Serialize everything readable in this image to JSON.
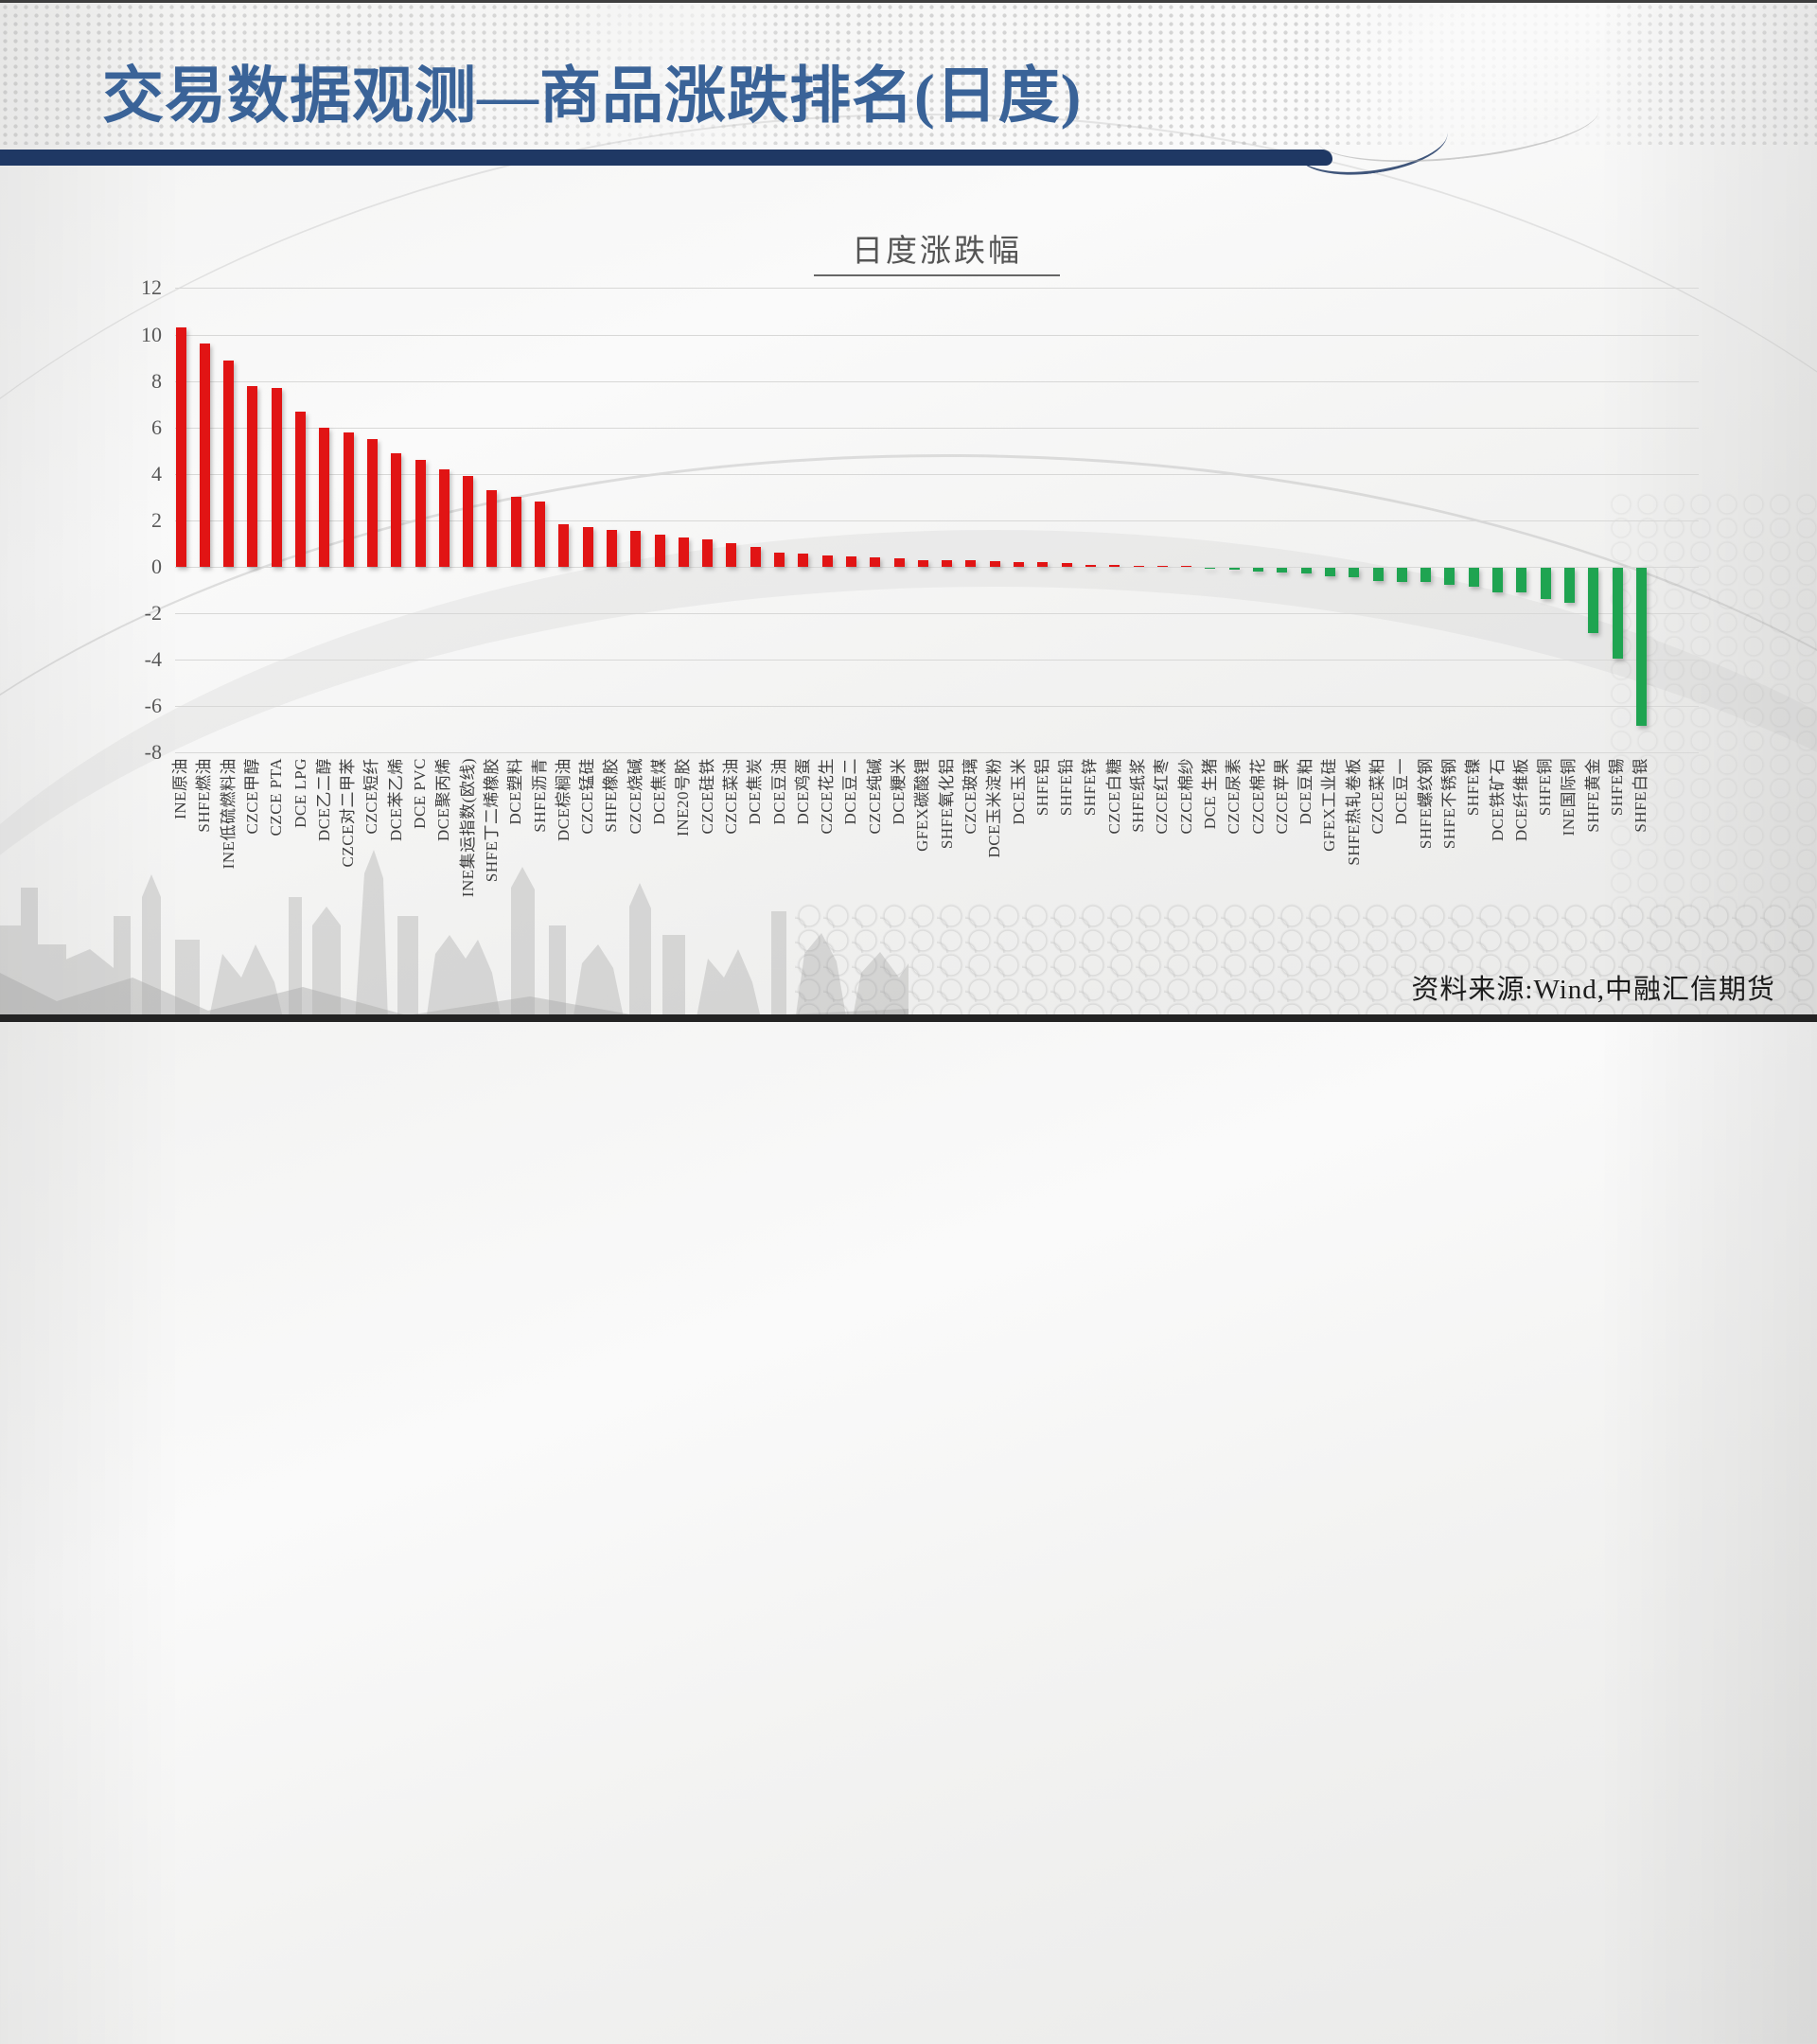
{
  "page": {
    "title": "交易数据观测—商品涨跌排名(日度)",
    "source": "资料来源:Wind,中融汇信期货"
  },
  "chart_data": {
    "type": "bar",
    "title": "日度涨跌幅",
    "xlabel": "",
    "ylabel": "",
    "ylim": [
      -8,
      12
    ],
    "yticks": [
      12,
      10,
      8,
      6,
      4,
      2,
      0,
      -2,
      -4,
      -6,
      -8
    ],
    "grid": true,
    "legend_position": "none",
    "positive_color": "#e11414",
    "negative_color": "#1fa451",
    "gridline_color": "#d8d8d7",
    "tick_color": "#595959",
    "categories": [
      "INE原油",
      "SHFE燃油",
      "INE低硫燃料油",
      "CZCE甲醇",
      "CZCE PTA",
      "DCE LPG",
      "DCE乙二醇",
      "CZCE对二甲苯",
      "CZCE短纤",
      "DCE苯乙烯",
      "DCE PVC",
      "DCE聚丙烯",
      "INE集运指数(欧线)",
      "SHFE丁二烯橡胶",
      "DCE塑料",
      "SHFE沥青",
      "DCE棕榈油",
      "CZCE锰硅",
      "SHFE橡胶",
      "CZCE烧碱",
      "DCE焦煤",
      "INE20号胶",
      "CZCE硅铁",
      "CZCE菜油",
      "DCE焦炭",
      "DCE豆油",
      "DCE鸡蛋",
      "CZCE花生",
      "DCE豆二",
      "CZCE纯碱",
      "DCE粳米",
      "GFEX碳酸锂",
      "SHFE氧化铝",
      "CZCE玻璃",
      "DCE玉米淀粉",
      "DCE玉米",
      "SHFE铝",
      "SHFE铅",
      "SHFE锌",
      "CZCE白糖",
      "SHFE纸浆",
      "CZCE红枣",
      "CZCE棉纱",
      "DCE 生猪",
      "CZCE尿素",
      "CZCE棉花",
      "CZCE苹果",
      "DCE豆粕",
      "GFEX工业硅",
      "SHFE热轧卷板",
      "CZCE菜粕",
      "DCE豆一",
      "SHFE螺纹钢",
      "SHFE不锈钢",
      "SHFE镍",
      "DCE铁矿石",
      "DCE纤维板",
      "SHFE铜",
      "INE国际铜",
      "SHFE黄金",
      "SHFE锡",
      "SHFE白银"
    ],
    "values": [
      10.3,
      9.6,
      8.9,
      7.8,
      7.7,
      6.7,
      6.0,
      5.8,
      5.5,
      4.9,
      4.6,
      4.2,
      3.9,
      3.3,
      3.0,
      2.8,
      1.85,
      1.7,
      1.6,
      1.55,
      1.4,
      1.25,
      1.2,
      1.0,
      0.85,
      0.6,
      0.55,
      0.5,
      0.45,
      0.4,
      0.35,
      0.3,
      0.3,
      0.28,
      0.25,
      0.22,
      0.2,
      0.15,
      0.1,
      0.08,
      0.05,
      0.02,
      0.0,
      -0.05,
      -0.1,
      -0.15,
      -0.2,
      -0.25,
      -0.35,
      -0.4,
      -0.55,
      -0.6,
      -0.6,
      -0.75,
      -0.8,
      -1.05,
      -1.05,
      -1.35,
      -1.5,
      -2.8,
      -3.9,
      -6.8
    ]
  }
}
